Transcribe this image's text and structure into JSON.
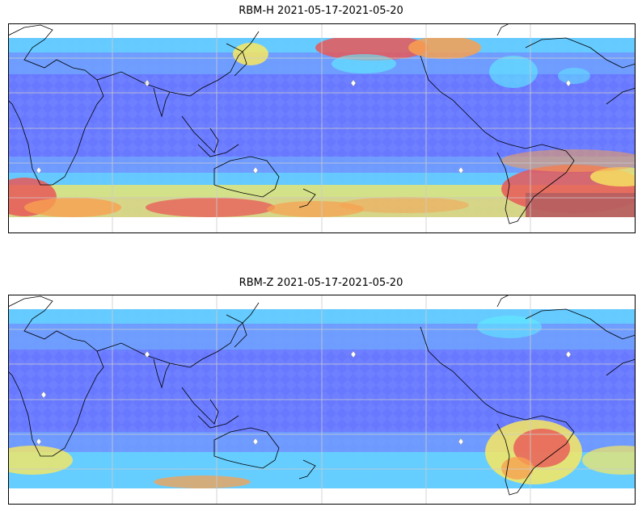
{
  "panels": [
    {
      "title": "RBM-H 2021-05-17-2021-05-20",
      "heat_zones": [
        {
          "region": "north-pacific-sea-of-japan",
          "level": "high"
        },
        {
          "region": "central-north-pacific",
          "level": "high"
        },
        {
          "region": "southern-africa-south-atlantic",
          "level": "high"
        },
        {
          "region": "southern-ocean-south-of-australia",
          "level": "high"
        },
        {
          "region": "south-america-argentina",
          "level": "very-high"
        }
      ]
    },
    {
      "title": "RBM-Z 2021-05-17-2021-05-20",
      "heat_zones": [
        {
          "region": "southern-africa-south-atlantic",
          "level": "medium"
        },
        {
          "region": "south-of-australia",
          "level": "medium"
        },
        {
          "region": "south-america-brazil-argentina",
          "level": "high"
        }
      ]
    }
  ],
  "colors": {
    "base_blue": "#6e80ff",
    "light_blue": "#70a8ff",
    "cyan": "#5ff0ff",
    "yellow": "#f8e860",
    "orange": "#f8a050",
    "red": "#e85858",
    "dark_red": "#b86060",
    "coastline": "#000000",
    "grid": "#cccccc"
  },
  "map": {
    "projection": "plate-carree",
    "central_longitude": 150,
    "gridlines": true,
    "coastlines": true
  }
}
